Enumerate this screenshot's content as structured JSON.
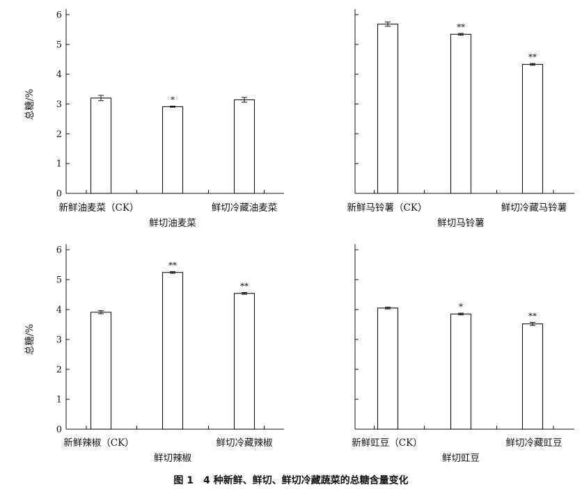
{
  "figure_caption": "图 1　4 种新鲜、鲜切、鲜切冷藏蔬菜的总糖含量变化",
  "colors": {
    "axis": "#111111",
    "bar_fill": "#ffffff",
    "bar_stroke": "#111111"
  },
  "chart_data": [
    {
      "type": "bar",
      "ylabel": "总糖/%",
      "ylim": [
        0,
        6
      ],
      "yticks": [
        "0",
        "1",
        "2",
        "3",
        "4",
        "5",
        "6"
      ],
      "categories": [
        "新鲜油麦菜（CK）",
        "鲜切油麦菜",
        "鲜切冷藏油麦菜"
      ],
      "values": [
        3.2,
        2.91,
        3.14
      ],
      "errors": [
        0.09,
        0.02,
        0.08
      ],
      "significance": [
        "",
        "*",
        ""
      ],
      "grid": false
    },
    {
      "type": "bar",
      "ylabel": "",
      "ylim": [
        0,
        6
      ],
      "yticks": [
        "",
        "",
        "",
        "",
        "",
        "",
        ""
      ],
      "categories": [
        "新鲜马铃薯（CK）",
        "鲜切马铃薯",
        "鲜切冷藏马铃薯"
      ],
      "values": [
        5.68,
        5.34,
        4.33
      ],
      "errors": [
        0.07,
        0.03,
        0.03
      ],
      "significance": [
        "",
        "**",
        "**"
      ],
      "grid": false
    },
    {
      "type": "bar",
      "ylabel": "总糖/%",
      "ylim": [
        0,
        6
      ],
      "yticks": [
        "0",
        "1",
        "2",
        "3",
        "4",
        "5",
        "6"
      ],
      "categories": [
        "新鲜辣椒（CK）",
        "鲜切辣椒",
        "鲜切冷藏辣椒"
      ],
      "values": [
        3.91,
        5.24,
        4.54
      ],
      "errors": [
        0.05,
        0.03,
        0.03
      ],
      "significance": [
        "",
        "**",
        "**"
      ],
      "grid": false
    },
    {
      "type": "bar",
      "ylabel": "",
      "ylim": [
        0,
        6
      ],
      "yticks": [
        "",
        "",
        "",
        "",
        "",
        "",
        ""
      ],
      "categories": [
        "新鲜豇豆（CK）",
        "鲜切豇豆",
        "鲜切冷藏豇豆"
      ],
      "values": [
        4.05,
        3.85,
        3.52
      ],
      "errors": [
        0.03,
        0.03,
        0.05
      ],
      "significance": [
        "",
        "*",
        "**"
      ],
      "grid": false
    }
  ]
}
